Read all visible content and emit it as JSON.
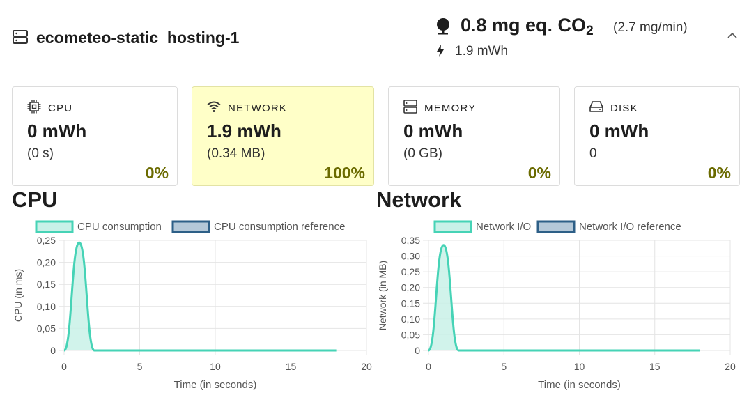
{
  "header": {
    "host_name": "ecometeo-static_hosting-1",
    "co2_value": "0.8 mg eq. CO",
    "co2_sub": "2",
    "co2_rate": "(2.7 mg/min)",
    "energy": "1.9 mWh",
    "icons": {
      "host": "server-icon",
      "co2": "tree-icon",
      "energy": "bolt-icon",
      "collapse": "chevron-up-icon"
    }
  },
  "cards": [
    {
      "key": "cpu",
      "icon": "cpu-chip-icon",
      "label": "CPU",
      "value": "0 mWh",
      "sub": "(0 s)",
      "pct": "0%",
      "active": false
    },
    {
      "key": "network",
      "icon": "wifi-icon",
      "label": "NETWORK",
      "value": "1.9 mWh",
      "sub": "(0.34 MB)",
      "pct": "100%",
      "active": true
    },
    {
      "key": "memory",
      "icon": "memory-icon",
      "label": "MEMORY",
      "value": "0 mWh",
      "sub": "(0 GB)",
      "pct": "0%",
      "active": false
    },
    {
      "key": "disk",
      "icon": "disk-icon",
      "label": "DISK",
      "value": "0 mWh",
      "sub": "0",
      "pct": "0%",
      "active": false
    }
  ],
  "sections": {
    "cpu_title": "CPU",
    "network_title": "Network"
  },
  "colors": {
    "series_fill": "#c9f1e8",
    "series_line": "#46d3b6",
    "reference_fill": "#b4c8d8",
    "reference_line": "#2d5f87",
    "highlight_card": "#ffffc8",
    "percent": "#6b6b00"
  },
  "chart_data": [
    {
      "type": "area",
      "xlabel": "Time (in seconds)",
      "ylabel": "CPU (in ms)",
      "xlim": [
        0,
        20
      ],
      "ylim": [
        0,
        0.25
      ],
      "x_ticks": [
        "0",
        "5",
        "10",
        "15",
        "20"
      ],
      "y_ticks": [
        "0",
        "0,05",
        "0,10",
        "0,15",
        "0,20",
        "0,25"
      ],
      "grid": true,
      "legend_position": "top",
      "series": [
        {
          "name": "CPU consumption",
          "x": [
            0,
            1,
            2,
            3,
            4,
            5,
            6,
            7,
            8,
            9,
            10,
            11,
            12,
            13,
            14,
            15,
            16,
            17,
            18
          ],
          "values": [
            0,
            0.245,
            0,
            0,
            0,
            0,
            0,
            0,
            0,
            0,
            0,
            0,
            0,
            0,
            0,
            0,
            0,
            0,
            0
          ]
        },
        {
          "name": "CPU consumption reference",
          "x": [],
          "values": []
        }
      ]
    },
    {
      "type": "area",
      "xlabel": "Time (in seconds)",
      "ylabel": "Network (in MB)",
      "xlim": [
        0,
        20
      ],
      "ylim": [
        0,
        0.35
      ],
      "x_ticks": [
        "0",
        "5",
        "10",
        "15",
        "20"
      ],
      "y_ticks": [
        "0",
        "0,05",
        "0,10",
        "0,15",
        "0,20",
        "0,25",
        "0,30",
        "0,35"
      ],
      "grid": true,
      "legend_position": "top",
      "series": [
        {
          "name": "Network I/O",
          "x": [
            0,
            1,
            2,
            3,
            4,
            5,
            6,
            7,
            8,
            9,
            10,
            11,
            12,
            13,
            14,
            15,
            16,
            17,
            18
          ],
          "values": [
            0,
            0.335,
            0,
            0,
            0,
            0,
            0,
            0,
            0,
            0,
            0,
            0,
            0,
            0,
            0,
            0,
            0,
            0,
            0
          ]
        },
        {
          "name": "Network I/O reference",
          "x": [],
          "values": []
        }
      ]
    }
  ]
}
